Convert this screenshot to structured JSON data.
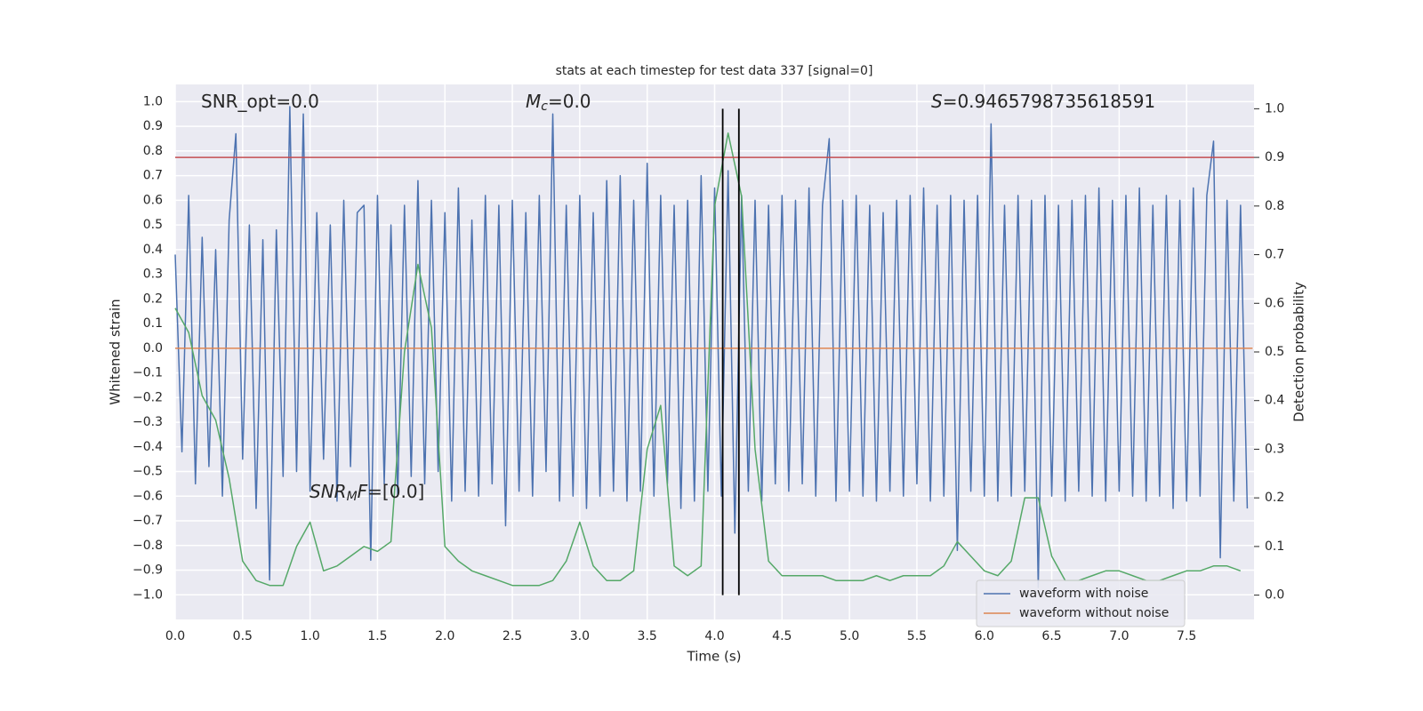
{
  "chart_data": {
    "type": "line",
    "title": "stats at each timestep for test data 337 [signal=0]",
    "x_label": "Time (s)",
    "y_label": "Whitened strain",
    "y2_label": "Detection probability",
    "xlim": [
      0,
      8
    ],
    "ylim": [
      -1.1,
      1.07
    ],
    "y2lim": [
      -0.05,
      1.05
    ],
    "grid": true,
    "legend": "lower right",
    "xticks": [
      {
        "value": 0,
        "label": "0.0"
      },
      {
        "value": 0.5,
        "label": "0.5"
      },
      {
        "value": 1,
        "label": "1.0"
      },
      {
        "value": 1.5,
        "label": "1.5"
      },
      {
        "value": 2,
        "label": "2.0"
      },
      {
        "value": 2.5,
        "label": "2.5"
      },
      {
        "value": 3,
        "label": "3.0"
      },
      {
        "value": 3.5,
        "label": "3.5"
      },
      {
        "value": 4,
        "label": "4.0"
      },
      {
        "value": 4.5,
        "label": "4.5"
      },
      {
        "value": 5,
        "label": "5.0"
      },
      {
        "value": 5.5,
        "label": "5.5"
      },
      {
        "value": 6,
        "label": "6.0"
      },
      {
        "value": 6.5,
        "label": "6.5"
      },
      {
        "value": 7,
        "label": "7.0"
      },
      {
        "value": 7.5,
        "label": "7.5"
      }
    ],
    "yticks": [
      {
        "value": -1,
        "label": "−1.0"
      },
      {
        "value": -0.9,
        "label": "−0.9"
      },
      {
        "value": -0.8,
        "label": "−0.8"
      },
      {
        "value": -0.7,
        "label": "−0.7"
      },
      {
        "value": -0.6,
        "label": "−0.6"
      },
      {
        "value": -0.5,
        "label": "−0.5"
      },
      {
        "value": -0.4,
        "label": "−0.4"
      },
      {
        "value": -0.3,
        "label": "−0.3"
      },
      {
        "value": -0.2,
        "label": "−0.2"
      },
      {
        "value": -0.1,
        "label": "−0.1"
      },
      {
        "value": 0,
        "label": "0.0"
      },
      {
        "value": 0.1,
        "label": "0.1"
      },
      {
        "value": 0.2,
        "label": "0.2"
      },
      {
        "value": 0.3,
        "label": "0.3"
      },
      {
        "value": 0.4,
        "label": "0.4"
      },
      {
        "value": 0.5,
        "label": "0.5"
      },
      {
        "value": 0.6,
        "label": "0.6"
      },
      {
        "value": 0.7,
        "label": "0.7"
      },
      {
        "value": 0.8,
        "label": "0.8"
      },
      {
        "value": 0.9,
        "label": "0.9"
      },
      {
        "value": 1,
        "label": "1.0"
      }
    ],
    "y2ticks": [
      {
        "value": 0,
        "label": "0.0"
      },
      {
        "value": 0.1,
        "label": "0.1"
      },
      {
        "value": 0.2,
        "label": "0.2"
      },
      {
        "value": 0.3,
        "label": "0.3"
      },
      {
        "value": 0.4,
        "label": "0.4"
      },
      {
        "value": 0.5,
        "label": "0.5"
      },
      {
        "value": 0.6,
        "label": "0.6"
      },
      {
        "value": 0.7,
        "label": "0.7"
      },
      {
        "value": 0.8,
        "label": "0.8"
      },
      {
        "value": 0.9,
        "label": "0.9"
      },
      {
        "value": 1,
        "label": "1.0"
      }
    ],
    "series": [
      {
        "name": "waveform with noise",
        "color": "#4c72b0",
        "x": [
          0,
          0.05,
          0.1,
          0.15,
          0.2,
          0.25,
          0.3,
          0.35,
          0.4,
          0.45,
          0.5,
          0.55,
          0.6,
          0.65,
          0.7,
          0.75,
          0.8,
          0.85,
          0.9,
          0.95,
          1,
          1.05,
          1.1,
          1.15,
          1.2,
          1.25,
          1.3,
          1.35,
          1.4,
          1.45,
          1.5,
          1.55,
          1.6,
          1.65,
          1.7,
          1.75,
          1.8,
          1.85,
          1.9,
          1.95,
          2,
          2.05,
          2.1,
          2.15,
          2.2,
          2.25,
          2.3,
          2.35,
          2.4,
          2.45,
          2.5,
          2.55,
          2.6,
          2.65,
          2.7,
          2.75,
          2.8,
          2.85,
          2.9,
          2.95,
          3,
          3.05,
          3.1,
          3.15,
          3.2,
          3.25,
          3.3,
          3.35,
          3.4,
          3.45,
          3.5,
          3.55,
          3.6,
          3.65,
          3.7,
          3.75,
          3.8,
          3.85,
          3.9,
          3.95,
          4,
          4.05,
          4.1,
          4.15,
          4.2,
          4.25,
          4.3,
          4.35,
          4.4,
          4.45,
          4.5,
          4.55,
          4.6,
          4.65,
          4.7,
          4.75,
          4.8,
          4.85,
          4.9,
          4.95,
          5,
          5.05,
          5.1,
          5.15,
          5.2,
          5.25,
          5.3,
          5.35,
          5.4,
          5.45,
          5.5,
          5.55,
          5.6,
          5.65,
          5.7,
          5.75,
          5.8,
          5.85,
          5.9,
          5.95,
          6,
          6.05,
          6.1,
          6.15,
          6.2,
          6.25,
          6.3,
          6.35,
          6.4,
          6.45,
          6.5,
          6.55,
          6.6,
          6.65,
          6.7,
          6.75,
          6.8,
          6.85,
          6.9,
          6.95,
          7,
          7.05,
          7.1,
          7.15,
          7.2,
          7.25,
          7.3,
          7.35,
          7.4,
          7.45,
          7.5,
          7.55,
          7.6,
          7.65,
          7.7,
          7.75,
          7.8,
          7.85,
          7.9,
          7.95
        ],
        "values": [
          0.38,
          -0.42,
          0.62,
          -0.55,
          0.45,
          -0.48,
          0.4,
          -0.6,
          0.52,
          0.87,
          -0.45,
          0.5,
          -0.65,
          0.44,
          -0.94,
          0.48,
          -0.52,
          0.98,
          -0.5,
          0.95,
          -0.58,
          0.55,
          -0.45,
          0.5,
          -0.62,
          0.6,
          -0.48,
          0.55,
          0.58,
          -0.86,
          0.62,
          -0.55,
          0.5,
          -0.6,
          0.58,
          -0.52,
          0.68,
          -0.55,
          0.6,
          -0.5,
          0.55,
          -0.62,
          0.65,
          -0.58,
          0.52,
          -0.6,
          0.62,
          -0.55,
          0.58,
          -0.72,
          0.6,
          -0.58,
          0.55,
          -0.6,
          0.62,
          -0.5,
          0.95,
          -0.62,
          0.58,
          -0.6,
          0.62,
          -0.65,
          0.55,
          -0.6,
          0.68,
          -0.58,
          0.7,
          -0.62,
          0.6,
          -0.58,
          0.75,
          -0.6,
          0.62,
          -0.55,
          0.58,
          -0.65,
          0.6,
          -0.62,
          0.7,
          -0.58,
          0.65,
          -0.6,
          0.72,
          -0.75,
          0.62,
          -0.58,
          0.6,
          -0.62,
          0.58,
          -0.55,
          0.62,
          -0.58,
          0.6,
          -0.55,
          0.65,
          -0.6,
          0.58,
          0.85,
          -0.62,
          0.6,
          -0.58,
          0.62,
          -0.6,
          0.58,
          -0.62,
          0.55,
          -0.58,
          0.6,
          -0.6,
          0.62,
          -0.55,
          0.65,
          -0.62,
          0.58,
          -0.6,
          0.62,
          -0.82,
          0.6,
          -0.58,
          0.62,
          -0.6,
          0.91,
          -0.62,
          0.58,
          -0.6,
          0.62,
          -0.58,
          0.6,
          -0.97,
          0.62,
          -0.6,
          0.58,
          -0.62,
          0.6,
          -0.58,
          0.62,
          -0.6,
          0.65,
          -0.62,
          0.6,
          -0.58,
          0.62,
          -0.6,
          0.65,
          -0.62,
          0.58,
          -0.6,
          0.62,
          -0.65,
          0.6,
          -0.62,
          0.65,
          -0.6,
          0.62,
          0.84,
          -0.85,
          0.6,
          -0.62,
          0.58,
          -0.65
        ]
      },
      {
        "name": "waveform without noise",
        "color": "#dd8452",
        "x": [
          0,
          7.99
        ],
        "values": [
          0,
          0
        ]
      },
      {
        "color": "#55a868",
        "axis": "y2",
        "x": [
          0,
          0.1,
          0.2,
          0.3,
          0.4,
          0.5,
          0.6,
          0.7,
          0.8,
          0.9,
          1,
          1.1,
          1.2,
          1.3,
          1.4,
          1.5,
          1.6,
          1.7,
          1.8,
          1.9,
          2,
          2.1,
          2.2,
          2.3,
          2.4,
          2.5,
          2.6,
          2.7,
          2.8,
          2.9,
          3,
          3.1,
          3.2,
          3.3,
          3.4,
          3.5,
          3.6,
          3.7,
          3.8,
          3.9,
          4,
          4.1,
          4.2,
          4.3,
          4.4,
          4.5,
          4.6,
          4.7,
          4.8,
          4.9,
          5,
          5.1,
          5.2,
          5.3,
          5.4,
          5.5,
          5.6,
          5.7,
          5.8,
          5.9,
          6,
          6.1,
          6.2,
          6.3,
          6.4,
          6.5,
          6.6,
          6.7,
          6.8,
          6.9,
          7,
          7.1,
          7.2,
          7.3,
          7.4,
          7.5,
          7.6,
          7.7,
          7.8,
          7.9
        ],
        "values": [
          0.59,
          0.54,
          0.41,
          0.36,
          0.24,
          0.07,
          0.03,
          0.02,
          0.02,
          0.1,
          0.15,
          0.05,
          0.06,
          0.08,
          0.1,
          0.09,
          0.11,
          0.5,
          0.68,
          0.55,
          0.1,
          0.07,
          0.05,
          0.04,
          0.03,
          0.02,
          0.02,
          0.02,
          0.03,
          0.07,
          0.15,
          0.06,
          0.03,
          0.03,
          0.05,
          0.3,
          0.39,
          0.06,
          0.04,
          0.06,
          0.8,
          0.95,
          0.82,
          0.3,
          0.07,
          0.04,
          0.04,
          0.04,
          0.04,
          0.03,
          0.03,
          0.03,
          0.04,
          0.03,
          0.04,
          0.04,
          0.04,
          0.06,
          0.11,
          0.08,
          0.05,
          0.04,
          0.07,
          0.2,
          0.2,
          0.08,
          0.03,
          0.03,
          0.04,
          0.05,
          0.05,
          0.04,
          0.03,
          0.03,
          0.04,
          0.05,
          0.05,
          0.06,
          0.06,
          0.05
        ]
      }
    ],
    "hlines": [
      {
        "value": 0.9,
        "axis": "y2",
        "color": "#c44e52"
      }
    ],
    "vlines": [
      {
        "x": 4.06,
        "ymin": 0,
        "ymax": 1,
        "axis": "y2",
        "color": "#000000"
      },
      {
        "x": 4.18,
        "ymin": 0,
        "ymax": 1,
        "axis": "y2",
        "color": "#000000"
      }
    ],
    "annotations": [
      {
        "parts": [
          {
            "text": "SNR_opt=0.0",
            "style": "normal"
          }
        ]
      },
      {
        "parts": [
          {
            "text": "M",
            "style": "italic"
          },
          {
            "text": "c",
            "style": "sub"
          },
          {
            "text": "=0.0",
            "style": "normal"
          }
        ]
      },
      {
        "parts": [
          {
            "text": "S",
            "style": "italic"
          },
          {
            "text": "=0.9465798735618591",
            "style": "normal"
          }
        ]
      },
      {
        "parts": [
          {
            "text": "SNR",
            "style": "italic"
          },
          {
            "text": "M",
            "style": "sub"
          },
          {
            "text": "F",
            "style": "italic"
          },
          {
            "text": "=[0.0]",
            "style": "normal"
          }
        ]
      }
    ]
  }
}
